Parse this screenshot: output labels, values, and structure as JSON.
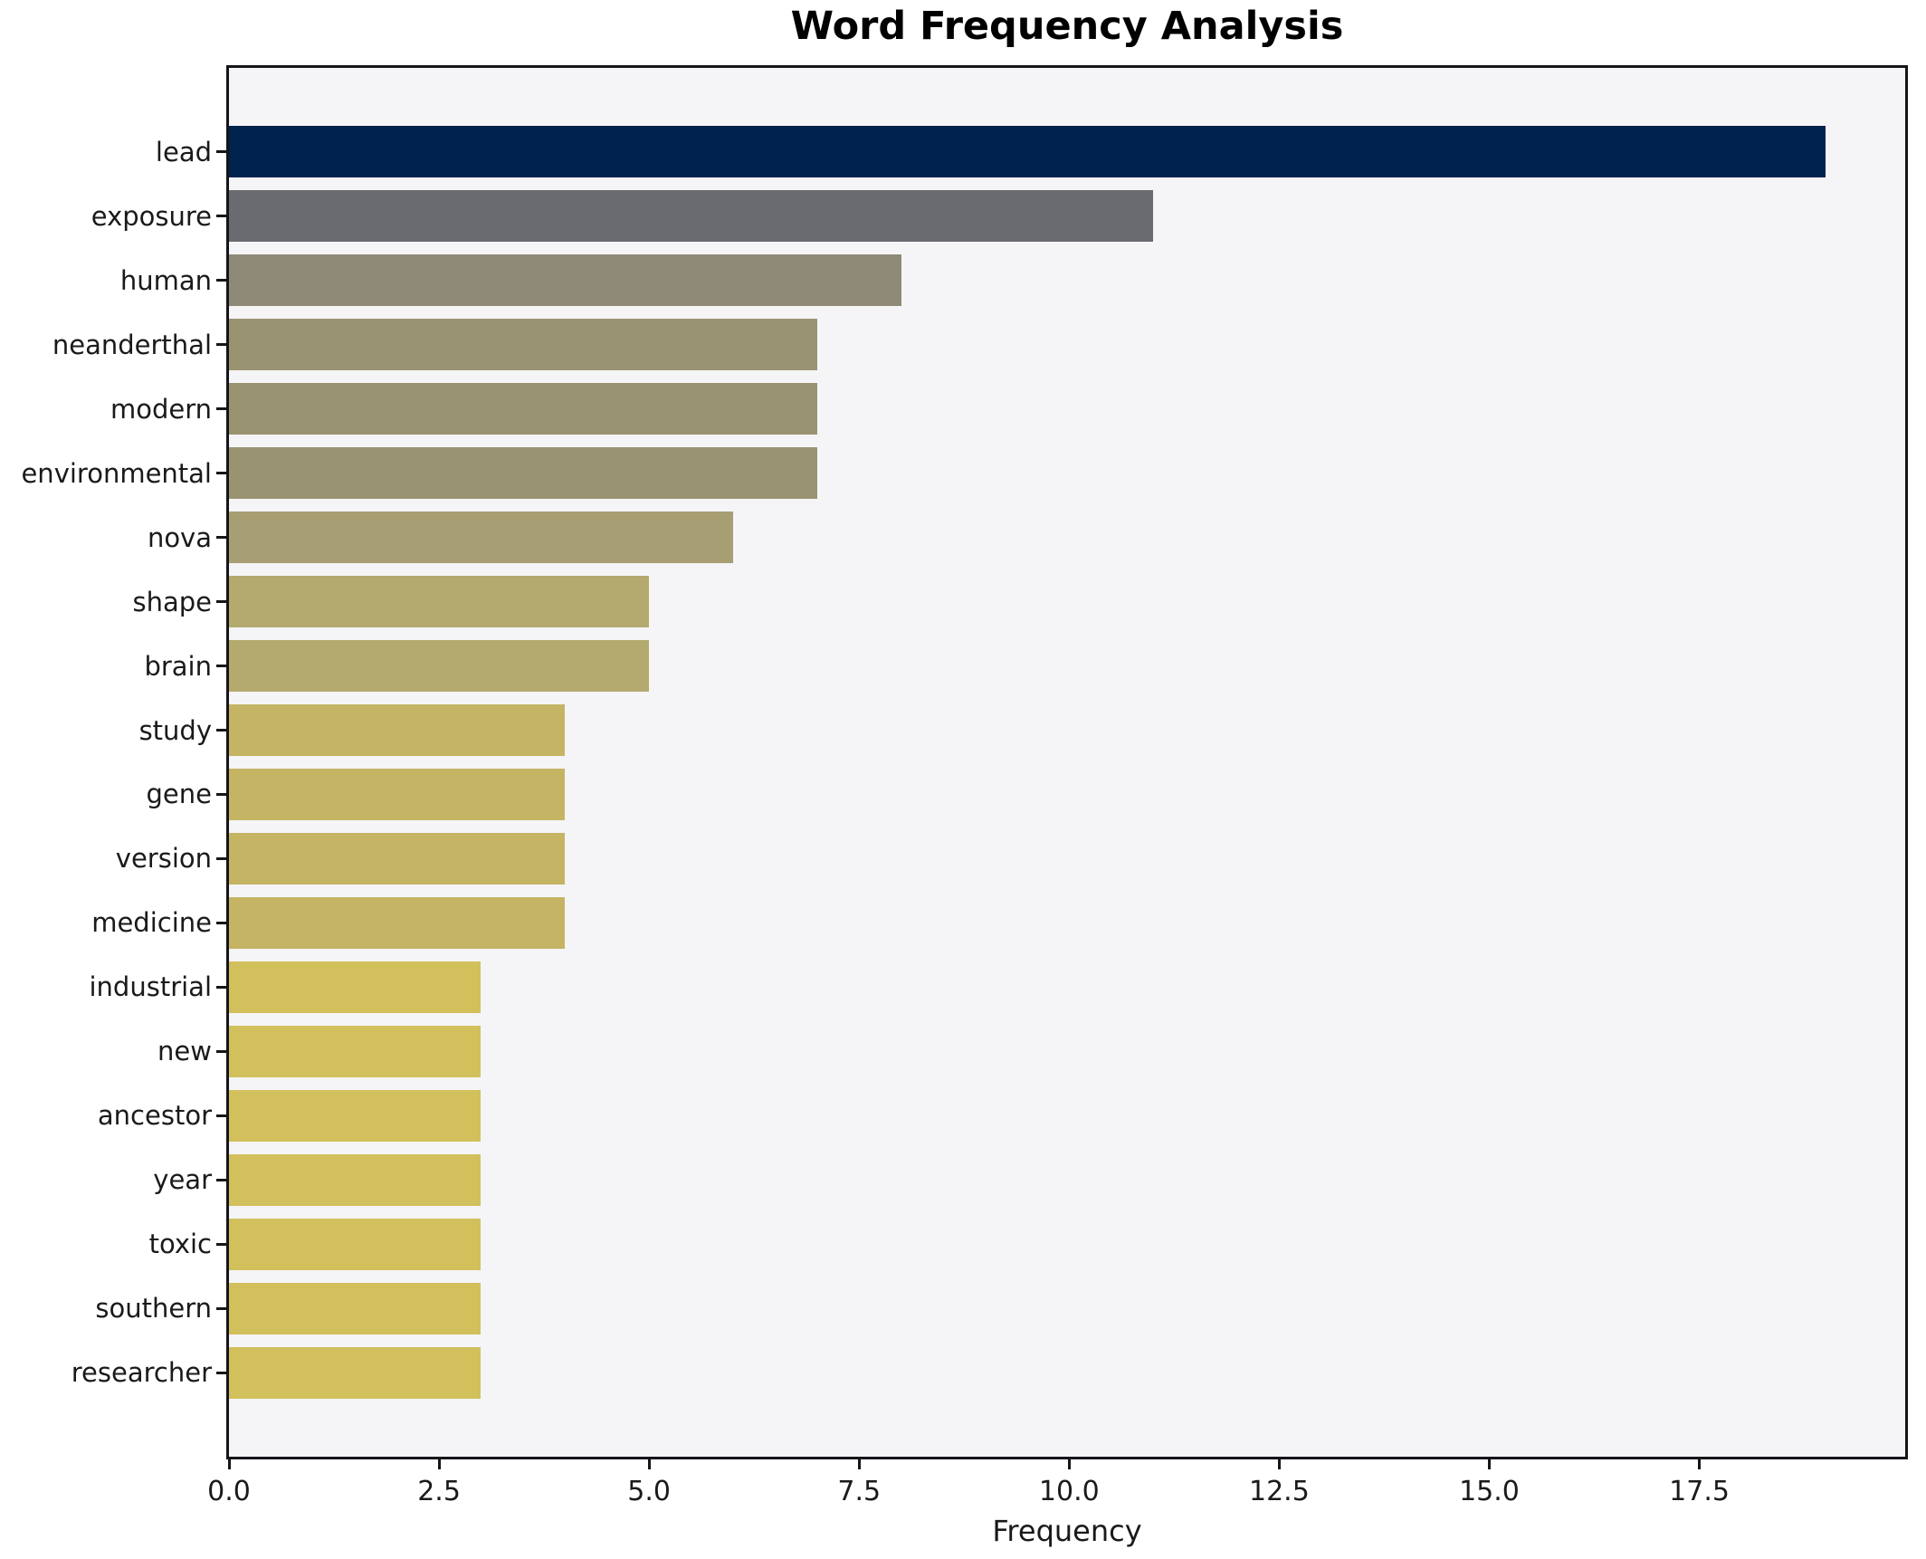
{
  "chart_data": {
    "type": "bar",
    "orientation": "horizontal",
    "title": "Word Frequency Analysis",
    "xlabel": "Frequency",
    "ylabel": "",
    "categories": [
      "lead",
      "exposure",
      "human",
      "neanderthal",
      "modern",
      "environmental",
      "nova",
      "shape",
      "brain",
      "study",
      "gene",
      "version",
      "medicine",
      "industrial",
      "new",
      "ancestor",
      "year",
      "toxic",
      "southern",
      "researcher"
    ],
    "values": [
      19,
      11,
      8,
      7,
      7,
      7,
      6,
      5,
      5,
      4,
      4,
      4,
      4,
      3,
      3,
      3,
      3,
      3,
      3,
      3
    ],
    "bar_colors": [
      "#00234e",
      "#696b70",
      "#8e8a77",
      "#9a9372",
      "#9a9372",
      "#9a9372",
      "#a89e73",
      "#b4a96e",
      "#b4a96e",
      "#c4b464",
      "#c4b464",
      "#c4b464",
      "#c4b464",
      "#d2c05c",
      "#d2c05c",
      "#d2c05c",
      "#d2c05c",
      "#d2c05c",
      "#d2c05c",
      "#d2c05c"
    ],
    "xlim": [
      0,
      19.95
    ],
    "x_ticks": [
      0,
      2.5,
      5,
      7.5,
      10,
      12.5,
      15,
      17.5
    ],
    "x_tick_labels": [
      "0.0",
      "2.5",
      "5.0",
      "7.5",
      "10.0",
      "12.5",
      "15.0",
      "17.5"
    ],
    "grid": false,
    "legend": false,
    "plot_background": "#f5f5f7",
    "figure_background": "#ffffff",
    "spine_color": "#15151a"
  }
}
